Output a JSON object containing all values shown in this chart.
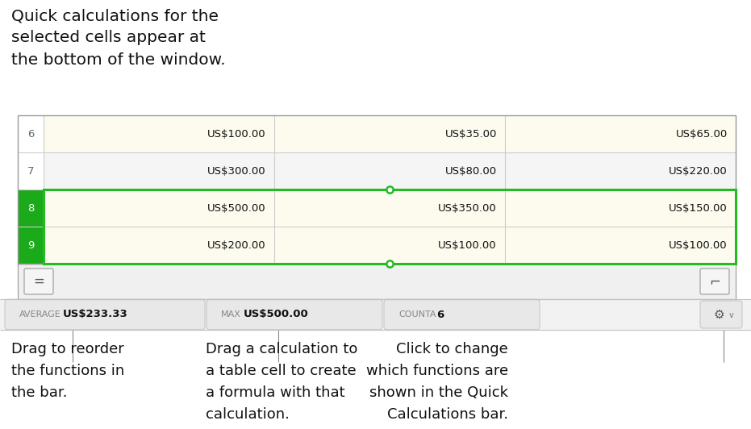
{
  "bg_color": "#ffffff",
  "title_text": "Quick calculations for the\nselected cells appear at\nthe bottom of the window.",
  "title_fontsize": 14.5,
  "table": {
    "rows": [
      {
        "num": "6",
        "col1": "US$100.00",
        "col2": "US$35.00",
        "col3": "US$65.00",
        "selected": false
      },
      {
        "num": "7",
        "col1": "US$300.00",
        "col2": "US$80.00",
        "col3": "US$220.00",
        "selected": false
      },
      {
        "num": "8",
        "col1": "US$500.00",
        "col2": "US$350.00",
        "col3": "US$150.00",
        "selected": true
      },
      {
        "num": "9",
        "col1": "US$200.00",
        "col2": "US$100.00",
        "col3": "US$100.00",
        "selected": true
      }
    ],
    "row6_fill": "#fdfbee",
    "row7_fill": "#f5f5f5",
    "row8_fill": "#fdfbee",
    "row9_fill": "#fdfbee",
    "num_col_selected_bg": "#1aaa1a",
    "num_col_normal_bg": "#ffffff",
    "border_outer": "#999999",
    "border_inner": "#cccccc",
    "green_selection": "#22bb22"
  },
  "calc_bar": {
    "bg": "#f2f2f2",
    "pill_bg": "#e8e8e8",
    "pill_border": "#c8c8c8",
    "items": [
      {
        "label": "AVERAGE",
        "value": "US$233.33"
      },
      {
        "label": "MAX",
        "value": "US$500.00"
      },
      {
        "label": "COUNTA",
        "value": "6"
      }
    ]
  },
  "annotations": [
    {
      "text": "Drag to reorder\nthe functions in\nthe bar.",
      "align": "left",
      "col": 0
    },
    {
      "text": "Drag a calculation to\na table cell to create\na formula with that\ncalculation.",
      "align": "left",
      "col": 1
    },
    {
      "text": "Click to change\nwhich functions are\nshown in the Quick\nCalculations bar.",
      "align": "right",
      "col": 2
    }
  ],
  "ann_fontsize": 13.0,
  "cell_fontsize": 9.5,
  "num_fontsize": 9.5,
  "pill_label_fontsize": 8.0,
  "pill_value_fontsize": 9.5
}
